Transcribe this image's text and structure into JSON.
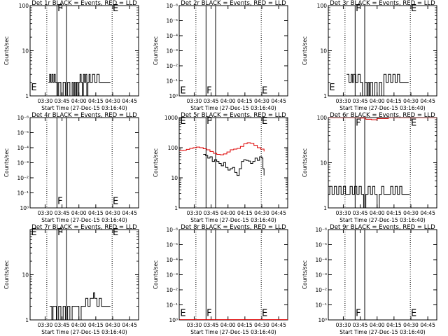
{
  "page": {
    "colors": {
      "events": "#000000",
      "lld": "#dd0000",
      "axes": "#000000",
      "background": "#ffffff"
    }
  },
  "common": {
    "ylabel": "Counts/sec",
    "xlabel": "Start Time (27-Dec-15 03:16:40)",
    "xticks": [
      "03:30",
      "03:45",
      "04:00",
      "04:15",
      "04:30",
      "04:45"
    ],
    "xtick_minutes": [
      30,
      45,
      60,
      75,
      90,
      105
    ],
    "xlim_minutes": [
      16.67,
      113
    ]
  },
  "chart_data": [
    {
      "type": "line",
      "title": "Det 1r BLACK = Events, RED = LLD",
      "yscale": "log",
      "ytick_labels": [
        "1",
        "10",
        "100"
      ],
      "ytick_values": [
        1,
        10,
        100
      ],
      "ylim": [
        1,
        100
      ],
      "dotted_lines": [
        31.5,
        89.5
      ],
      "solid_lines": [
        40.5,
        49
      ],
      "markers": [
        {
          "label": "E",
          "x": 17.5,
          "y": 1.6
        },
        {
          "label": "F",
          "x": 41,
          "y": 90
        },
        {
          "label": "E",
          "x": 90,
          "y": 90
        }
      ],
      "series": [
        {
          "color": "#000000",
          "x": [
            33,
            34,
            35,
            36,
            37,
            38,
            39,
            40,
            41,
            42,
            44,
            46,
            48,
            50,
            52,
            54,
            55,
            56,
            57,
            58,
            59,
            60,
            61,
            62,
            63,
            64,
            65,
            66,
            67,
            68,
            69,
            70,
            72,
            74,
            76,
            78,
            80,
            82,
            84,
            86,
            88
          ],
          "y": [
            2,
            3,
            2,
            3,
            2,
            3,
            2,
            2,
            1,
            2,
            1,
            2,
            1,
            2,
            1,
            2,
            1,
            2,
            1,
            2,
            1,
            2,
            3,
            2,
            1,
            3,
            2,
            3,
            1,
            2,
            3,
            2,
            3,
            2,
            3,
            2,
            2,
            2,
            2,
            2,
            2
          ]
        }
      ]
    },
    {
      "type": "line",
      "title": "Det 2r BLACK = Events, RED = LLD",
      "yscale": "log",
      "ytick_labels": [
        "10⁰",
        "10⁻¹",
        "10⁻²",
        "10⁻³",
        "10⁻⁴",
        "10⁻⁵",
        "10⁻⁶"
      ],
      "ytick_values": [
        0,
        1,
        2,
        3,
        4,
        5,
        6
      ],
      "ylim": [
        0,
        6
      ],
      "dotted_lines": [
        31.5,
        89.5
      ],
      "solid_lines": [
        40.5,
        49
      ],
      "markers": [
        {
          "label": "E",
          "x": 17.5,
          "y": 0.4
        },
        {
          "label": "F",
          "x": 41,
          "y": 0.4
        },
        {
          "label": "E",
          "x": 90,
          "y": 0.4
        }
      ],
      "series": []
    },
    {
      "type": "line",
      "title": "Det 3r BLACK = Events, RED = LLD",
      "yscale": "log",
      "ytick_labels": [
        "1",
        "10",
        "100"
      ],
      "ytick_values": [
        1,
        10,
        100
      ],
      "ylim": [
        1,
        100
      ],
      "dotted_lines": [
        31.5,
        89.5
      ],
      "solid_lines": [
        40.5,
        49
      ],
      "markers": [
        {
          "label": "E",
          "x": 17.5,
          "y": 1.6
        },
        {
          "label": "F",
          "x": 41,
          "y": 90
        },
        {
          "label": "E",
          "x": 90,
          "y": 90
        }
      ],
      "series": [
        {
          "color": "#000000",
          "x": [
            33,
            35,
            37,
            38,
            39,
            41,
            43,
            45,
            47,
            49,
            51,
            52,
            53,
            54,
            56,
            58,
            60,
            62,
            64,
            66,
            68,
            70,
            72,
            74,
            76,
            78,
            80,
            82,
            84,
            86,
            88
          ],
          "y": [
            3,
            2,
            3,
            2,
            3,
            2,
            3,
            2,
            1,
            2,
            1,
            2,
            1,
            2,
            1,
            2,
            1,
            2,
            1,
            3,
            2,
            3,
            2,
            3,
            2,
            3,
            2,
            2,
            2,
            2,
            2
          ]
        }
      ]
    },
    {
      "type": "line",
      "title": "Det 4r BLACK = Events, RED = LLD",
      "yscale": "log",
      "ytick_labels": [
        "10⁰",
        "10⁻¹",
        "10⁻²",
        "10⁻³",
        "10⁻⁴",
        "10⁻⁵",
        "10⁻⁶"
      ],
      "ytick_values": [
        0,
        1,
        2,
        3,
        4,
        5,
        6
      ],
      "ylim": [
        0,
        6
      ],
      "dotted_lines": [
        31.5,
        89.5
      ],
      "solid_lines": [
        40.5,
        49
      ],
      "markers": [
        {
          "label": "F",
          "x": 41,
          "y": 0.5
        },
        {
          "label": "E",
          "x": 90,
          "y": 0.5
        }
      ],
      "series": []
    },
    {
      "type": "line",
      "title": "Det 5r BLACK = Events, RED = LLD",
      "yscale": "log",
      "ytick_labels": [
        "1",
        "10",
        "100",
        "1000"
      ],
      "ytick_values": [
        1,
        10,
        100,
        1000
      ],
      "ylim": [
        1,
        1000
      ],
      "dotted_lines": [
        31.5,
        89.5
      ],
      "solid_lines": [
        40.5,
        49
      ],
      "markers": [
        {
          "label": "E",
          "x": 17.5,
          "y": 800
        },
        {
          "label": "F",
          "x": 41,
          "y": 800
        },
        {
          "label": "E",
          "x": 90,
          "y": 800
        }
      ],
      "series": [
        {
          "color": "#dd0000",
          "x": [
            17,
            20,
            23,
            26,
            29,
            32,
            35,
            38,
            41,
            44,
            47,
            50,
            53,
            56,
            59,
            62,
            65,
            68,
            71,
            74,
            77,
            80,
            83,
            86,
            89,
            92
          ],
          "y": [
            80,
            82,
            88,
            95,
            100,
            105,
            100,
            92,
            85,
            75,
            65,
            60,
            58,
            62,
            72,
            85,
            90,
            95,
            110,
            135,
            145,
            140,
            120,
            100,
            90,
            75
          ]
        },
        {
          "color": "#000000",
          "x": [
            38,
            40,
            42,
            44,
            46,
            48,
            50,
            52,
            54,
            56,
            58,
            60,
            62,
            64,
            66,
            68,
            70,
            72,
            74,
            76,
            78,
            80,
            82,
            84,
            86,
            88,
            90,
            91,
            92
          ],
          "y": [
            60,
            55,
            45,
            50,
            35,
            40,
            35,
            30,
            25,
            32,
            22,
            18,
            20,
            22,
            15,
            12,
            20,
            35,
            40,
            38,
            36,
            30,
            35,
            45,
            38,
            50,
            45,
            20,
            12
          ]
        }
      ]
    },
    {
      "type": "line",
      "title": "Det 6r BLACK = Events, RED = LLD",
      "yscale": "log",
      "ytick_labels": [
        "1",
        "10",
        "100"
      ],
      "ytick_values": [
        1,
        10,
        100
      ],
      "ylim": [
        1,
        100
      ],
      "dotted_lines": [
        31.5,
        89.5
      ],
      "solid_lines": [
        40.5,
        49
      ],
      "markers": [
        {
          "label": "F",
          "x": 41,
          "y": 80
        },
        {
          "label": "E",
          "x": 90,
          "y": 80
        }
      ],
      "series": [
        {
          "color": "#dd0000",
          "x": [
            17,
            25,
            35,
            42,
            45,
            50,
            55,
            60,
            70,
            80,
            90,
            100,
            113
          ],
          "y": [
            100,
            100,
            100,
            100,
            98,
            92,
            90,
            95,
            100,
            100,
            100,
            100,
            100
          ]
        },
        {
          "color": "#000000",
          "x": [
            17,
            18,
            20,
            22,
            24,
            26,
            28,
            30,
            32,
            34,
            36,
            38,
            40,
            42,
            44,
            46,
            48,
            50,
            52,
            54,
            56,
            58,
            60,
            62,
            64,
            66,
            68,
            70,
            72,
            74,
            76,
            78,
            80,
            82,
            84,
            86,
            88,
            89
          ],
          "y": [
            2,
            3,
            2,
            3,
            2,
            3,
            2,
            3,
            2,
            2,
            3,
            2,
            3,
            2,
            3,
            2,
            1,
            2,
            3,
            2,
            3,
            2,
            1,
            2,
            3,
            2,
            2,
            2,
            3,
            2,
            3,
            2,
            3,
            2,
            2,
            2,
            2,
            2
          ]
        }
      ]
    },
    {
      "type": "line",
      "title": "Det 7r BLACK = Events, RED = LLD",
      "yscale": "log",
      "ytick_labels": [
        "1",
        "10"
      ],
      "ytick_values": [
        1,
        10
      ],
      "ylim": [
        1,
        100
      ],
      "dotted_lines": [
        31.5,
        89.5
      ],
      "solid_lines": [
        40.5,
        49
      ],
      "markers": [
        {
          "label": "E",
          "x": 17.5,
          "y": 90
        },
        {
          "label": "F",
          "x": 41,
          "y": 90
        },
        {
          "label": "E",
          "x": 90,
          "y": 90
        }
      ],
      "series": [
        {
          "color": "#000000",
          "x": [
            34,
            36,
            37,
            38,
            40,
            42,
            44,
            46,
            48,
            50,
            52,
            54,
            56,
            58,
            60,
            62,
            64,
            66,
            68,
            70,
            72,
            73,
            74,
            76,
            78,
            80,
            82,
            84,
            86,
            88
          ],
          "y": [
            2,
            1,
            2,
            2,
            1,
            2,
            1,
            2,
            1,
            2,
            1,
            2,
            2,
            2,
            1,
            2,
            2,
            3,
            2,
            3,
            3,
            4,
            3,
            2,
            3,
            2,
            2,
            2,
            2,
            2
          ]
        }
      ]
    },
    {
      "type": "line",
      "title": "Det 8r BLACK = Events, RED = LLD",
      "yscale": "log",
      "ytick_labels": [
        "10⁰",
        "10⁻¹",
        "10⁻²",
        "10⁻³",
        "10⁻⁴",
        "10⁻⁵",
        "10⁻⁶"
      ],
      "ytick_values": [
        0,
        1,
        2,
        3,
        4,
        5,
        6
      ],
      "ylim": [
        0,
        6
      ],
      "dotted_lines": [
        31.5,
        89.5
      ],
      "solid_lines": [
        40.5,
        49
      ],
      "markers": [
        {
          "label": "E",
          "x": 17.5,
          "y": 0.5
        },
        {
          "label": "F",
          "x": 41,
          "y": 0.5
        },
        {
          "label": "E",
          "x": 90,
          "y": 0.5
        }
      ],
      "series": [
        {
          "color": "#dd0000",
          "x": [
            17,
            30,
            45,
            60,
            75,
            90,
            105,
            113
          ],
          "y": [
            0.02,
            0.02,
            0.02,
            0.02,
            0.02,
            0.02,
            0.02,
            0.02
          ]
        }
      ]
    },
    {
      "type": "line",
      "title": "Det 9r BLACK = Events, RED = LLD",
      "yscale": "log",
      "ytick_labels": [
        "10⁰",
        "10⁻¹",
        "10⁻²",
        "10⁻³",
        "10⁻⁴",
        "10⁻⁵",
        "10⁻⁶"
      ],
      "ytick_values": [
        0,
        1,
        2,
        3,
        4,
        5,
        6
      ],
      "ylim": [
        0,
        6
      ],
      "dotted_lines": [
        31.5,
        89.5
      ],
      "solid_lines": [
        40.5,
        49
      ],
      "markers": [
        {
          "label": "F",
          "x": 41,
          "y": 0.5
        },
        {
          "label": "E",
          "x": 90,
          "y": 0.5
        }
      ],
      "series": []
    }
  ]
}
